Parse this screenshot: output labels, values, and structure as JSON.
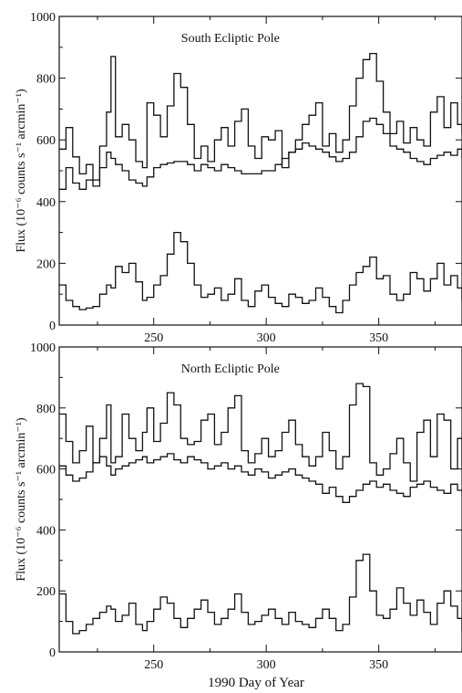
{
  "chart_data": [
    {
      "type": "line",
      "title": "South Ecliptic Pole",
      "ylabel": "Flux (10⁻⁶ counts s⁻¹ arcmin⁻¹)",
      "xlabel": "",
      "xlim": [
        208,
        387
      ],
      "ylim": [
        0,
        1000
      ],
      "xticks": [
        250,
        300,
        350
      ],
      "yticks": [
        0,
        200,
        400,
        600,
        800,
        1000
      ],
      "grid": false,
      "step": true,
      "series": [
        {
          "x": [
            208,
            211,
            214,
            217,
            220,
            223,
            226,
            229,
            231,
            233,
            236,
            239,
            242,
            245,
            247,
            250,
            253,
            256,
            259,
            262,
            265,
            268,
            271,
            274,
            277,
            280,
            283,
            286,
            289,
            292,
            295,
            298,
            301,
            304,
            307,
            310,
            313,
            316,
            319,
            322,
            325,
            328,
            331,
            334,
            337,
            340,
            343,
            346,
            349,
            352,
            355,
            358,
            361,
            364,
            367,
            370,
            373,
            376,
            379,
            382,
            385,
            387
          ],
          "values": [
            570,
            640,
            545,
            490,
            520,
            470,
            580,
            690,
            870,
            610,
            650,
            600,
            530,
            510,
            720,
            680,
            610,
            710,
            815,
            770,
            650,
            540,
            580,
            530,
            600,
            640,
            580,
            660,
            700,
            580,
            540,
            610,
            600,
            630,
            510,
            560,
            600,
            650,
            680,
            720,
            580,
            620,
            560,
            600,
            710,
            800,
            860,
            880,
            790,
            690,
            620,
            660,
            590,
            640,
            600,
            580,
            690,
            740,
            640,
            720,
            650,
            620
          ]
        },
        {
          "x": [
            208,
            211,
            214,
            217,
            220,
            223,
            226,
            229,
            231,
            233,
            236,
            239,
            242,
            245,
            247,
            250,
            253,
            256,
            259,
            262,
            265,
            268,
            271,
            274,
            277,
            280,
            283,
            286,
            289,
            292,
            295,
            298,
            301,
            304,
            307,
            310,
            313,
            316,
            319,
            322,
            325,
            328,
            331,
            334,
            337,
            340,
            343,
            346,
            349,
            352,
            355,
            358,
            361,
            364,
            367,
            370,
            373,
            376,
            379,
            382,
            385,
            387
          ],
          "values": [
            440,
            510,
            460,
            440,
            470,
            450,
            510,
            560,
            540,
            520,
            500,
            470,
            460,
            450,
            480,
            510,
            520,
            525,
            530,
            530,
            520,
            500,
            520,
            510,
            500,
            520,
            510,
            500,
            490,
            490,
            490,
            500,
            500,
            520,
            540,
            560,
            570,
            590,
            580,
            570,
            560,
            545,
            530,
            540,
            560,
            610,
            660,
            670,
            650,
            620,
            580,
            570,
            560,
            540,
            530,
            520,
            540,
            550,
            560,
            550,
            570,
            540
          ]
        },
        {
          "x": [
            208,
            211,
            214,
            217,
            220,
            223,
            226,
            229,
            231,
            233,
            236,
            239,
            242,
            245,
            247,
            250,
            253,
            256,
            259,
            262,
            265,
            268,
            271,
            274,
            277,
            280,
            283,
            286,
            289,
            292,
            295,
            298,
            301,
            304,
            307,
            310,
            313,
            316,
            319,
            322,
            325,
            328,
            331,
            334,
            337,
            340,
            343,
            346,
            349,
            352,
            355,
            358,
            361,
            364,
            367,
            370,
            373,
            376,
            379,
            382,
            385,
            387
          ],
          "values": [
            130,
            80,
            60,
            50,
            55,
            60,
            100,
            130,
            120,
            190,
            170,
            200,
            140,
            80,
            90,
            130,
            160,
            230,
            300,
            270,
            200,
            130,
            90,
            100,
            120,
            80,
            100,
            150,
            80,
            60,
            110,
            130,
            90,
            70,
            60,
            100,
            90,
            70,
            80,
            120,
            90,
            60,
            40,
            80,
            130,
            170,
            190,
            220,
            150,
            160,
            100,
            80,
            100,
            170,
            150,
            110,
            150,
            200,
            130,
            160,
            120,
            80
          ]
        }
      ]
    },
    {
      "type": "line",
      "title": "North Ecliptic Pole",
      "ylabel": "Flux (10⁻⁶ counts s⁻¹ arcmin⁻¹)",
      "xlabel": "1990 Day of Year",
      "xlim": [
        208,
        387
      ],
      "ylim": [
        0,
        1000
      ],
      "xticks": [
        250,
        300,
        350
      ],
      "yticks": [
        0,
        200,
        400,
        600,
        800,
        1000
      ],
      "grid": false,
      "step": true,
      "series": [
        {
          "x": [
            208,
            211,
            214,
            217,
            220,
            223,
            226,
            229,
            231,
            233,
            236,
            239,
            242,
            245,
            247,
            250,
            253,
            256,
            259,
            262,
            265,
            268,
            271,
            274,
            277,
            280,
            283,
            286,
            289,
            292,
            295,
            298,
            301,
            304,
            307,
            310,
            313,
            316,
            319,
            322,
            325,
            328,
            331,
            334,
            337,
            340,
            343,
            346,
            349,
            352,
            355,
            358,
            361,
            364,
            367,
            370,
            373,
            376,
            379,
            382,
            385,
            387
          ],
          "values": [
            780,
            690,
            620,
            660,
            740,
            620,
            700,
            810,
            620,
            640,
            780,
            700,
            660,
            720,
            800,
            690,
            750,
            850,
            810,
            700,
            680,
            690,
            760,
            780,
            680,
            720,
            800,
            840,
            660,
            620,
            650,
            700,
            640,
            660,
            720,
            760,
            680,
            640,
            610,
            640,
            720,
            660,
            600,
            640,
            810,
            880,
            870,
            620,
            580,
            600,
            650,
            700,
            620,
            560,
            720,
            760,
            640,
            780,
            760,
            600,
            700,
            610
          ]
        },
        {
          "x": [
            208,
            211,
            214,
            217,
            220,
            223,
            226,
            229,
            231,
            233,
            236,
            239,
            242,
            245,
            247,
            250,
            253,
            256,
            259,
            262,
            265,
            268,
            271,
            274,
            277,
            280,
            283,
            286,
            289,
            292,
            295,
            298,
            301,
            304,
            307,
            310,
            313,
            316,
            319,
            322,
            325,
            328,
            331,
            334,
            337,
            340,
            343,
            346,
            349,
            352,
            355,
            358,
            361,
            364,
            367,
            370,
            373,
            376,
            379,
            382,
            385,
            387
          ],
          "values": [
            610,
            580,
            560,
            570,
            590,
            620,
            640,
            610,
            580,
            600,
            610,
            620,
            630,
            640,
            620,
            630,
            640,
            650,
            630,
            620,
            640,
            630,
            620,
            600,
            610,
            620,
            600,
            610,
            590,
            580,
            600,
            590,
            570,
            580,
            590,
            600,
            580,
            570,
            560,
            550,
            520,
            540,
            510,
            490,
            510,
            530,
            550,
            560,
            540,
            550,
            530,
            520,
            510,
            540,
            550,
            560,
            540,
            530,
            520,
            550,
            530,
            520
          ]
        },
        {
          "x": [
            208,
            211,
            214,
            217,
            220,
            223,
            226,
            229,
            231,
            233,
            236,
            239,
            242,
            245,
            247,
            250,
            253,
            256,
            259,
            262,
            265,
            268,
            271,
            274,
            277,
            280,
            283,
            286,
            289,
            292,
            295,
            298,
            301,
            304,
            307,
            310,
            313,
            316,
            319,
            322,
            325,
            328,
            331,
            334,
            337,
            340,
            343,
            346,
            349,
            352,
            355,
            358,
            361,
            364,
            367,
            370,
            373,
            376,
            379,
            382,
            385,
            387
          ],
          "values": [
            190,
            100,
            60,
            70,
            90,
            110,
            130,
            150,
            140,
            100,
            120,
            160,
            90,
            70,
            100,
            140,
            180,
            160,
            110,
            80,
            110,
            140,
            170,
            130,
            90,
            110,
            140,
            190,
            130,
            90,
            100,
            120,
            140,
            110,
            90,
            130,
            100,
            90,
            80,
            110,
            140,
            110,
            70,
            90,
            180,
            300,
            320,
            200,
            120,
            110,
            140,
            210,
            160,
            120,
            170,
            130,
            90,
            160,
            200,
            150,
            110,
            70
          ]
        }
      ]
    }
  ]
}
